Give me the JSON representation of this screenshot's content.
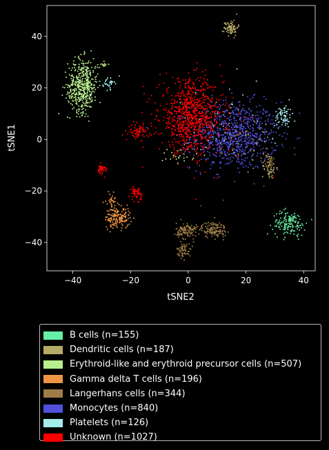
{
  "chart_data": {
    "type": "scatter",
    "title": "",
    "xlabel": "tSNE2",
    "ylabel": "tSNE1",
    "xlim": [
      -49,
      44
    ],
    "ylim": [
      -51,
      52
    ],
    "xticks": [
      -40,
      -20,
      0,
      20,
      40
    ],
    "yticks": [
      -40,
      -20,
      0,
      20,
      40
    ],
    "xtick_labels": [
      "−40",
      "−20",
      "0",
      "20",
      "40"
    ],
    "ytick_labels": [
      "−40",
      "−20",
      "0",
      "20",
      "40"
    ],
    "grid": false,
    "legend_position": "below",
    "series": [
      {
        "name": "B cells (n=155)",
        "color": "#66f0a6",
        "clusters": [
          {
            "cx": 35,
            "cy": -32.5,
            "sx": 2.8,
            "sy": 2.4,
            "n": 155
          }
        ]
      },
      {
        "name": "Dendritic cells (n=187)",
        "color": "#b6ab66",
        "clusters": [
          {
            "cx": 14.8,
            "cy": 43.5,
            "sx": 1.2,
            "sy": 1.5,
            "n": 80
          },
          {
            "cx": 28,
            "cy": -10.5,
            "sx": 1.2,
            "sy": 2.5,
            "n": 45
          },
          {
            "cx": 18,
            "cy": 0,
            "sx": 7,
            "sy": 7,
            "n": 62
          }
        ]
      },
      {
        "name": "Erythroid-like and erythroid precursor cells (n=507)",
        "color": "#b8ee8e",
        "clusters": [
          {
            "cx": -36.5,
            "cy": 21,
            "sx": 2.6,
            "sy": 5.2,
            "n": 440
          },
          {
            "cx": -40,
            "cy": 17,
            "sx": 1.5,
            "sy": 1.5,
            "n": 30
          },
          {
            "cx": -29,
            "cy": 29,
            "sx": 0.6,
            "sy": 0.6,
            "n": 12
          },
          {
            "cx": -3,
            "cy": -6,
            "sx": 3,
            "sy": 1.5,
            "n": 25
          }
        ]
      },
      {
        "name": "Gamma delta T cells (n=196)",
        "color": "#ee9445",
        "clusters": [
          {
            "cx": -24.5,
            "cy": -30.5,
            "sx": 2.2,
            "sy": 2.0,
            "n": 160
          },
          {
            "cx": -26.5,
            "cy": -24,
            "sx": 1.0,
            "sy": 1.5,
            "n": 36
          }
        ]
      },
      {
        "name": "Langerhans cells (n=344)",
        "color": "#9d7c45",
        "clusters": [
          {
            "cx": 9,
            "cy": -35,
            "sx": 2.2,
            "sy": 1.6,
            "n": 130
          },
          {
            "cx": -0.5,
            "cy": -35.5,
            "sx": 1.8,
            "sy": 1.6,
            "n": 120
          },
          {
            "cx": -1.5,
            "cy": -43,
            "sx": 1.2,
            "sy": 1.3,
            "n": 60
          },
          {
            "cx": 28,
            "cy": -10,
            "sx": 1.5,
            "sy": 2.5,
            "n": 34
          }
        ]
      },
      {
        "name": "Monocytes (n=840)",
        "color": "#5050dd",
        "clusters": [
          {
            "cx": 16,
            "cy": 1.5,
            "sx": 7.5,
            "sy": 6.5,
            "n": 840
          }
        ]
      },
      {
        "name": "Platelets (n=126)",
        "color": "#a4ecec",
        "clusters": [
          {
            "cx": 33,
            "cy": 9,
            "sx": 1.5,
            "sy": 2.2,
            "n": 70
          },
          {
            "cx": -27.5,
            "cy": 22,
            "sx": 1.0,
            "sy": 1.2,
            "n": 30
          },
          {
            "cx": 10,
            "cy": 5,
            "sx": 10,
            "sy": 8,
            "n": 26
          }
        ]
      },
      {
        "name": "Unknown (n=1027)",
        "color": "#ff0000",
        "clusters": [
          {
            "cx": 1,
            "cy": 9,
            "sx": 5.5,
            "sy": 7,
            "n": 830
          },
          {
            "cx": -17.5,
            "cy": 3,
            "sx": 1.6,
            "sy": 1.3,
            "n": 70
          },
          {
            "cx": -18,
            "cy": -21,
            "sx": 0.9,
            "sy": 1.4,
            "n": 50
          },
          {
            "cx": -30,
            "cy": -11.5,
            "sx": 1.0,
            "sy": 0.9,
            "n": 40
          },
          {
            "cx": 6,
            "cy": 2,
            "sx": 9,
            "sy": 8,
            "n": 37
          }
        ]
      }
    ]
  }
}
